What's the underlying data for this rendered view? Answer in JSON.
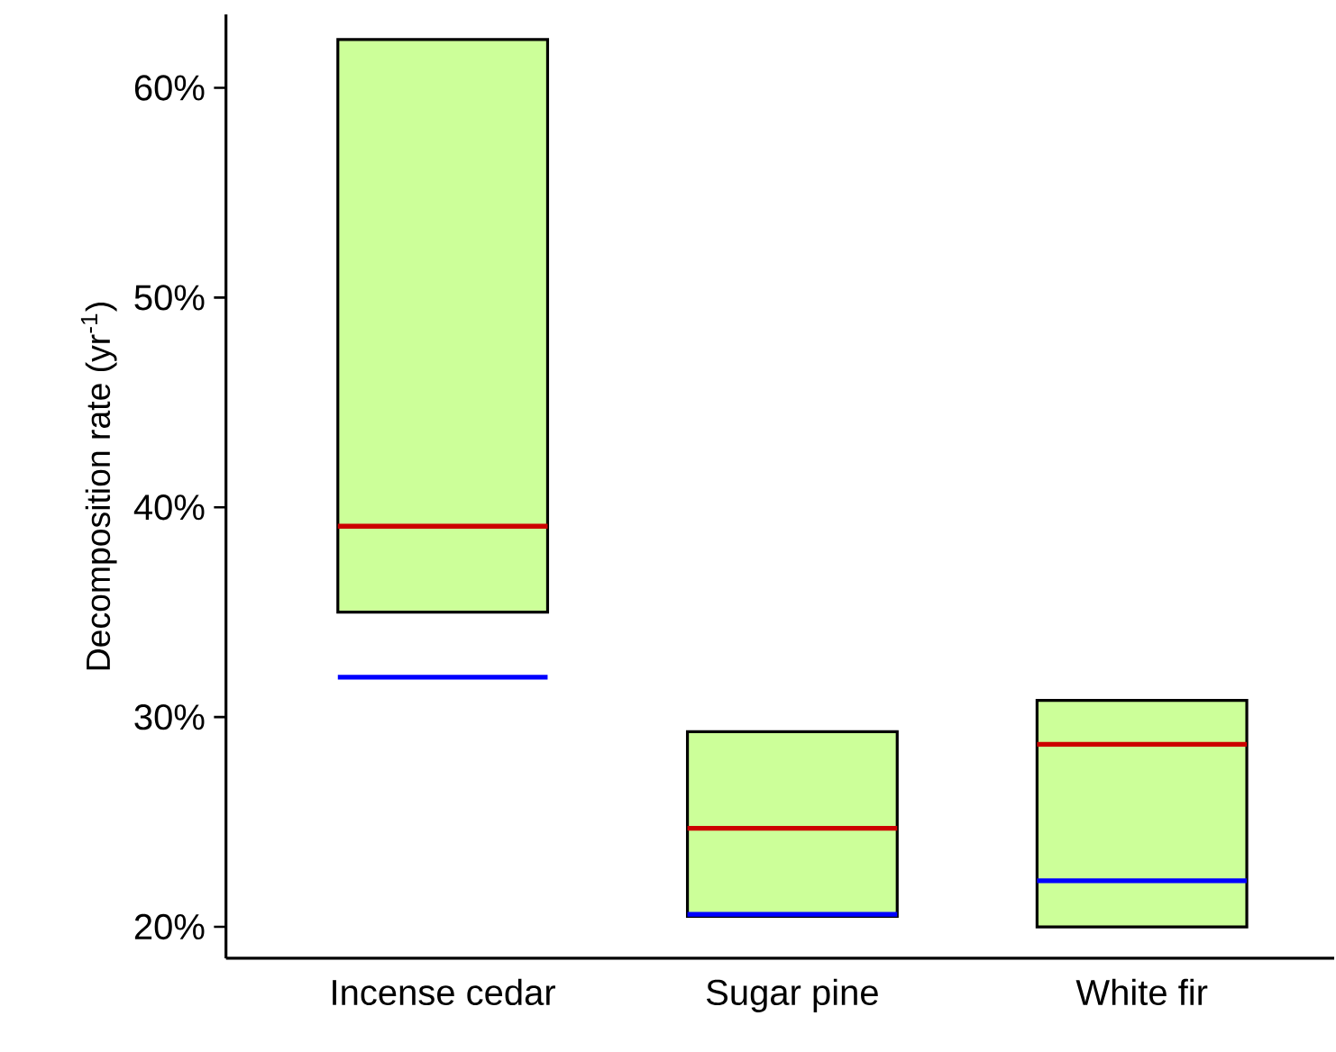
{
  "chart_data": {
    "type": "box",
    "ylabel": "Decomposition rate (yr$^{-1}$)",
    "categories": [
      "Incense cedar",
      "Sugar pine",
      "White fir"
    ],
    "series": [
      {
        "color": "#ccff99",
        "boxes": [
          {
            "low": 35.0,
            "q1": 35.0,
            "median": 39.1,
            "q3": 62.3,
            "high": 62.3,
            "mean": 31.9
          },
          {
            "low": 20.5,
            "q1": 20.5,
            "median": 24.7,
            "q3": 29.3,
            "high": 29.3,
            "mean": 20.6
          },
          {
            "low": 20.0,
            "q1": 20.0,
            "median": 28.7,
            "q3": 30.8,
            "high": 30.8,
            "mean": 22.2
          }
        ]
      }
    ],
    "ylim": [
      18.5,
      63.5
    ],
    "yticks": [
      {
        "value": 20,
        "label": "20%"
      },
      {
        "value": 30,
        "label": "30%"
      },
      {
        "value": 40,
        "label": "40%"
      },
      {
        "value": 50,
        "label": "50%"
      },
      {
        "value": 60,
        "label": "60%"
      }
    ]
  }
}
